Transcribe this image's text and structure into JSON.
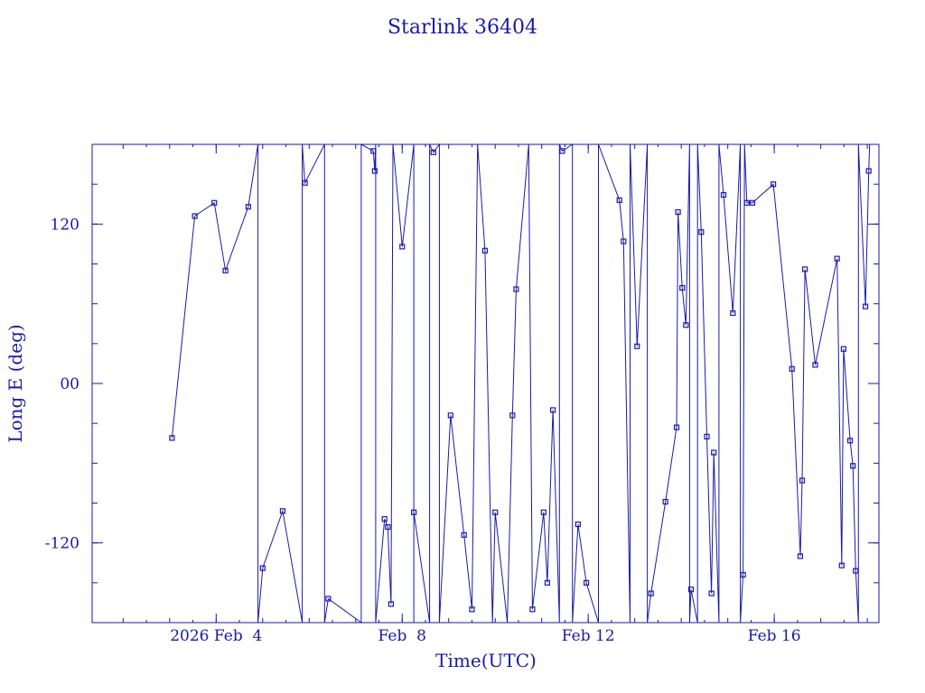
{
  "chart_data": {
    "type": "line",
    "title": "Starlink 36404",
    "xlabel": "Time(UTC)",
    "ylabel": "Long E (deg)",
    "xlim": [
      "2026-02-01T08:00",
      "2026-02-18T06:00"
    ],
    "ylim": [
      -180,
      180
    ],
    "x_ticks": [
      {
        "x": "2026-02-04",
        "label": "2026 Feb  4"
      },
      {
        "x": "2026-02-08",
        "label": "Feb  8"
      },
      {
        "x": "2026-02-12",
        "label": "Feb 12"
      },
      {
        "x": "2026-02-16",
        "label": "Feb 16"
      }
    ],
    "y_ticks": [
      {
        "y": 120,
        "label": "120"
      },
      {
        "y": 0,
        "label": "00"
      },
      {
        "y": -120,
        "label": "-120"
      }
    ],
    "grid": false,
    "color": "#1a1aa6",
    "series": [
      {
        "points": [
          [
            "2026-02-03T01:12",
            -41
          ],
          [
            "2026-02-03T12:58",
            126
          ],
          [
            "2026-02-03T23:02",
            136
          ],
          [
            "2026-02-04T04:48",
            85
          ],
          [
            "2026-02-04T16:34",
            133
          ],
          [
            "2026-02-04T21:36",
            180
          ],
          [
            "2026-02-04T21:36",
            -180
          ],
          [
            "2026-02-05T00:00",
            -139
          ],
          [
            "2026-02-05T10:19",
            -96
          ],
          [
            "2026-02-05T20:24",
            -180
          ],
          [
            "2026-02-05T20:24",
            180
          ],
          [
            "2026-02-05T21:50",
            151
          ],
          [
            "2026-02-06T07:55",
            180
          ],
          [
            "2026-02-06T07:55",
            -180
          ],
          [
            "2026-02-06T09:50",
            -162
          ],
          [
            "2026-02-07T02:53",
            -180
          ],
          [
            "2026-02-07T02:53",
            180
          ],
          [
            "2026-02-07T09:07",
            175
          ],
          [
            "2026-02-07T09:50",
            160
          ],
          [
            "2026-02-07T10:19",
            180
          ],
          [
            "2026-02-07T10:19",
            -180
          ],
          [
            "2026-02-07T14:53",
            -102
          ],
          [
            "2026-02-07T16:34",
            -108
          ],
          [
            "2026-02-07T18:14",
            -166
          ],
          [
            "2026-02-07T19:12",
            180
          ],
          [
            "2026-02-07T19:12",
            180
          ],
          [
            "2026-02-08T00:00",
            103
          ],
          [
            "2026-02-08T06:00",
            180
          ],
          [
            "2026-02-08T06:00",
            -180
          ],
          [
            "2026-02-08T06:00",
            -97
          ],
          [
            "2026-02-08T14:10",
            -180
          ],
          [
            "2026-02-08T14:10",
            180
          ],
          [
            "2026-02-08T16:05",
            174
          ],
          [
            "2026-02-08T19:12",
            180
          ],
          [
            "2026-02-08T19:12",
            -180
          ],
          [
            "2026-02-09T00:58",
            -24
          ],
          [
            "2026-02-09T07:55",
            -114
          ],
          [
            "2026-02-09T12:00",
            -170
          ],
          [
            "2026-02-09T14:53",
            180
          ],
          [
            "2026-02-09T14:53",
            180
          ],
          [
            "2026-02-09T18:43",
            100
          ],
          [
            "2026-02-09T22:34",
            -180
          ],
          [
            "2026-02-09T22:34",
            -180
          ],
          [
            "2026-02-10T00:00",
            -97
          ],
          [
            "2026-02-10T06:14",
            -180
          ],
          [
            "2026-02-10T06:14",
            -180
          ],
          [
            "2026-02-10T08:53",
            -24
          ],
          [
            "2026-02-10T10:48",
            71
          ],
          [
            "2026-02-10T17:17",
            180
          ],
          [
            "2026-02-10T17:17",
            180
          ],
          [
            "2026-02-10T19:12",
            -170
          ],
          [
            "2026-02-11T00:58",
            -97
          ],
          [
            "2026-02-11T02:53",
            -150
          ],
          [
            "2026-02-11T05:46",
            -20
          ],
          [
            "2026-02-11T09:07",
            -180
          ],
          [
            "2026-02-11T09:07",
            180
          ],
          [
            "2026-02-11T10:34",
            175
          ],
          [
            "2026-02-11T15:50",
            180
          ],
          [
            "2026-02-11T15:50",
            -180
          ],
          [
            "2026-02-11T18:43",
            -106
          ],
          [
            "2026-02-11T23:02",
            -150
          ],
          [
            "2026-02-12T05:17",
            -180
          ],
          [
            "2026-02-12T05:17",
            180
          ],
          [
            "2026-02-12T16:05",
            138
          ],
          [
            "2026-02-12T18:14",
            107
          ],
          [
            "2026-02-12T21:36",
            -180
          ],
          [
            "2026-02-12T21:36",
            180
          ],
          [
            "2026-02-13T01:12",
            28
          ],
          [
            "2026-02-13T06:29",
            180
          ],
          [
            "2026-02-13T06:29",
            -180
          ],
          [
            "2026-02-13T08:24",
            -158
          ],
          [
            "2026-02-13T15:50",
            -89
          ],
          [
            "2026-02-13T21:36",
            -33
          ],
          [
            "2026-02-13T22:19",
            129
          ],
          [
            "2026-02-14T00:29",
            72
          ],
          [
            "2026-02-14T02:24",
            44
          ],
          [
            "2026-02-14T04:19",
            180
          ],
          [
            "2026-02-14T04:19",
            -180
          ],
          [
            "2026-02-14T05:02",
            -155
          ],
          [
            "2026-02-14T08:24",
            -180
          ],
          [
            "2026-02-14T08:24",
            180
          ],
          [
            "2026-02-14T10:19",
            114
          ],
          [
            "2026-02-14T13:12",
            -40
          ],
          [
            "2026-02-14T15:36",
            -158
          ],
          [
            "2026-02-14T16:48",
            -52
          ],
          [
            "2026-02-14T19:26",
            -180
          ],
          [
            "2026-02-14T19:26",
            180
          ],
          [
            "2026-02-14T21:50",
            142
          ],
          [
            "2026-02-15T02:38",
            53
          ],
          [
            "2026-02-15T06:29",
            180
          ],
          [
            "2026-02-15T06:29",
            -180
          ],
          [
            "2026-02-15T07:55",
            -144
          ],
          [
            "2026-02-15T08:38",
            180
          ],
          [
            "2026-02-15T08:38",
            180
          ],
          [
            "2026-02-15T09:50",
            136
          ],
          [
            "2026-02-15T12:43",
            136
          ],
          [
            "2026-02-15T23:31",
            150
          ],
          [
            "2026-02-16T09:07",
            11
          ],
          [
            "2026-02-16T13:26",
            -130
          ],
          [
            "2026-02-16T14:24",
            -73
          ],
          [
            "2026-02-16T15:50",
            86
          ],
          [
            "2026-02-16T21:07",
            14
          ],
          [
            "2026-02-17T08:24",
            94
          ],
          [
            "2026-02-17T10:48",
            -137
          ],
          [
            "2026-02-17T11:46",
            26
          ],
          [
            "2026-02-17T15:07",
            -43
          ],
          [
            "2026-02-17T16:34",
            -62
          ],
          [
            "2026-02-17T18:00",
            -141
          ],
          [
            "2026-02-17T19:26",
            -180
          ],
          [
            "2026-02-17T19:26",
            180
          ],
          [
            "2026-02-17T23:02",
            58
          ],
          [
            "2026-02-18T00:43",
            160
          ],
          [
            "2026-02-18T01:12",
            180
          ],
          [
            "2026-02-18T01:12",
            180
          ]
        ]
      }
    ]
  }
}
